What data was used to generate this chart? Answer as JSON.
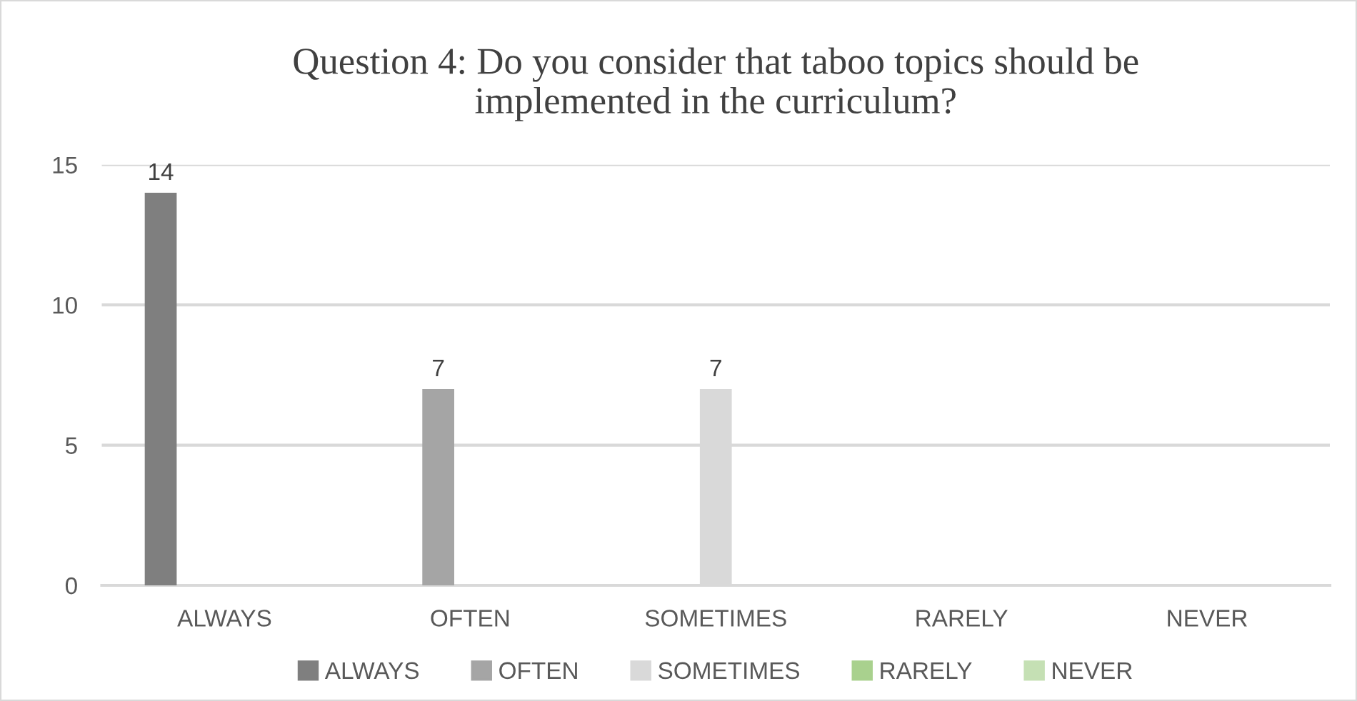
{
  "chart_data": {
    "type": "bar",
    "title": "Question 4: Do you consider that taboo topics should be\nimplemented in the curriculum?",
    "categories": [
      "ALWAYS",
      "OFTEN",
      "SOMETIMES",
      "RARELY",
      "NEVER"
    ],
    "series": [
      {
        "name": "ALWAYS",
        "color": "#7f7f7f",
        "values": [
          14,
          null,
          null,
          null,
          null
        ]
      },
      {
        "name": "OFTEN",
        "color": "#a5a5a5",
        "values": [
          null,
          7,
          null,
          null,
          null
        ]
      },
      {
        "name": "SOMETIMES",
        "color": "#d9d9d9",
        "values": [
          null,
          null,
          7,
          null,
          null
        ]
      },
      {
        "name": "RARELY",
        "color": "#a9d18e",
        "values": [
          null,
          null,
          null,
          null,
          null
        ]
      },
      {
        "name": "NEVER",
        "color": "#c5e0b4",
        "values": [
          null,
          null,
          null,
          null,
          null
        ]
      }
    ],
    "ylim": [
      0,
      15
    ],
    "yticks": [
      0,
      5,
      10,
      15
    ],
    "grid": "y",
    "legend": "bottom",
    "data_labels": true
  }
}
